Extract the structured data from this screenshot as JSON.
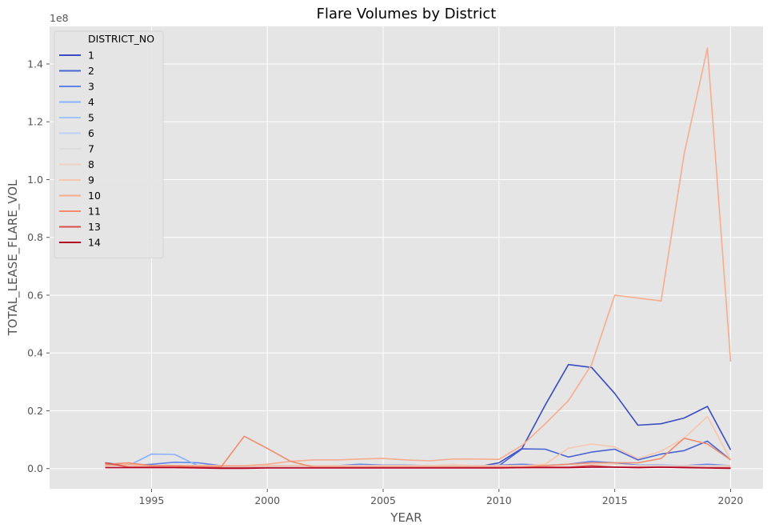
{
  "chart_data": {
    "type": "line",
    "title": "Flare Volumes by District",
    "xlabel": "YEAR",
    "ylabel": "TOTAL_LEASE_FLARE_VOL",
    "y_offset_text": "1e8",
    "xlim": [
      1990.6,
      2021.4
    ],
    "ylim": [
      -0.07,
      1.53
    ],
    "x_ticks": [
      1995,
      2000,
      2005,
      2010,
      2015,
      2020
    ],
    "y_ticks": [
      0.0,
      0.2,
      0.4,
      0.6,
      0.8,
      1.0,
      1.2,
      1.4
    ],
    "y_tick_labels": [
      "0.0",
      "0.2",
      "0.4",
      "0.6",
      "0.8",
      "1.0",
      "1.2",
      "1.4"
    ],
    "grid": true,
    "legend": {
      "title": "DISTRICT_NO",
      "placement": "upper-left"
    },
    "x": [
      1993,
      1994,
      1995,
      1996,
      1997,
      1998,
      1999,
      2000,
      2001,
      2002,
      2003,
      2004,
      2005,
      2006,
      2007,
      2008,
      2009,
      2010,
      2011,
      2012,
      2013,
      2014,
      2015,
      2016,
      2017,
      2018,
      2019,
      2020
    ],
    "series": [
      {
        "name": "1",
        "color": "#3b4cc0",
        "values": [
          0.02,
          0.01,
          0.01,
          0.01,
          0.01,
          0.005,
          0.005,
          0.005,
          0.005,
          0.005,
          0.005,
          0.005,
          0.005,
          0.005,
          0.005,
          0.005,
          0.005,
          0.02,
          0.07,
          0.22,
          0.36,
          0.35,
          0.26,
          0.15,
          0.155,
          0.175,
          0.215,
          0.065
        ]
      },
      {
        "name": "2",
        "color": "#4a63d3",
        "values": [
          0.01,
          0.01,
          0.01,
          0.01,
          0.01,
          0.005,
          0.005,
          0.005,
          0.005,
          0.005,
          0.005,
          0.005,
          0.005,
          0.005,
          0.005,
          0.005,
          0.005,
          0.01,
          0.068,
          0.067,
          0.04,
          0.057,
          0.067,
          0.03,
          0.05,
          0.062,
          0.095,
          0.03
        ]
      },
      {
        "name": "3",
        "color": "#6282ea",
        "values": [
          0.015,
          0.01,
          0.015,
          0.022,
          0.02,
          0.01,
          0.005,
          0.01,
          0.01,
          0.01,
          0.01,
          0.015,
          0.012,
          0.012,
          0.01,
          0.01,
          0.01,
          0.012,
          0.015,
          0.012,
          0.015,
          0.025,
          0.02,
          0.012,
          0.012,
          0.01,
          0.015,
          0.01
        ]
      },
      {
        "name": "4",
        "color": "#8db0fe",
        "values": [
          0.01,
          0.01,
          0.05,
          0.049,
          0.01,
          0.005,
          0.005,
          0.005,
          0.005,
          0.005,
          0.005,
          0.005,
          0.005,
          0.005,
          0.005,
          0.005,
          0.005,
          0.005,
          0.005,
          0.005,
          0.005,
          0.005,
          0.005,
          0.005,
          0.005,
          0.005,
          0.005,
          0.005
        ]
      },
      {
        "name": "5",
        "color": "#a3c2fe",
        "values": [
          0.005,
          0.005,
          0.005,
          0.005,
          0.005,
          0.005,
          0.005,
          0.005,
          0.005,
          0.005,
          0.005,
          0.005,
          0.005,
          0.005,
          0.005,
          0.005,
          0.005,
          0.005,
          0.005,
          0.005,
          0.005,
          0.005,
          0.005,
          0.005,
          0.005,
          0.005,
          0.005,
          0.005
        ]
      },
      {
        "name": "6",
        "color": "#bcd2f7",
        "values": [
          0.005,
          0.005,
          0.005,
          0.005,
          0.005,
          0.005,
          0.005,
          0.005,
          0.005,
          0.005,
          0.005,
          0.005,
          0.005,
          0.005,
          0.005,
          0.005,
          0.005,
          0.005,
          0.005,
          0.005,
          0.005,
          0.005,
          0.005,
          0.005,
          0.005,
          0.005,
          0.005,
          0.005
        ]
      },
      {
        "name": "7",
        "color": "#dddcdc",
        "values": [
          0.005,
          0.005,
          0.005,
          0.005,
          0.005,
          0.005,
          0.005,
          0.005,
          0.005,
          0.005,
          0.005,
          0.005,
          0.005,
          0.005,
          0.005,
          0.005,
          0.005,
          0.005,
          0.005,
          0.005,
          0.005,
          0.005,
          0.005,
          0.005,
          0.005,
          0.005,
          0.005,
          0.005
        ]
      },
      {
        "name": "8",
        "color": "#ecd3c5",
        "values": [
          0.01,
          0.01,
          0.01,
          0.01,
          0.01,
          0.01,
          0.01,
          0.01,
          0.01,
          0.01,
          0.01,
          0.01,
          0.01,
          0.01,
          0.01,
          0.015,
          0.01,
          0.01,
          0.01,
          0.012,
          0.015,
          0.015,
          0.015,
          0.01,
          0.01,
          0.01,
          0.01,
          0.01
        ]
      },
      {
        "name": "9",
        "color": "#f7c6ad",
        "values": [
          0.01,
          0.01,
          0.01,
          0.01,
          0.01,
          0.01,
          0.01,
          0.01,
          0.01,
          0.01,
          0.01,
          0.01,
          0.01,
          0.01,
          0.01,
          0.01,
          0.01,
          0.01,
          0.01,
          0.015,
          0.07,
          0.085,
          0.075,
          0.035,
          0.06,
          0.105,
          0.18,
          0.03
        ]
      },
      {
        "name": "10",
        "color": "#f7ac8e",
        "values": [
          0.01,
          0.015,
          0.01,
          0.01,
          0.01,
          0.01,
          0.01,
          0.015,
          0.025,
          0.03,
          0.03,
          0.033,
          0.035,
          0.03,
          0.027,
          0.033,
          0.033,
          0.032,
          0.08,
          0.155,
          0.235,
          0.36,
          0.6,
          0.59,
          0.58,
          1.09,
          1.455,
          0.37
        ]
      },
      {
        "name": "11",
        "color": "#f08c6e",
        "values": [
          0.015,
          0.02,
          0.01,
          0.01,
          0.005,
          0.005,
          0.112,
          0.07,
          0.025,
          0.005,
          0.005,
          0.005,
          0.005,
          0.005,
          0.005,
          0.005,
          0.005,
          0.005,
          0.005,
          0.01,
          0.015,
          0.02,
          0.02,
          0.02,
          0.035,
          0.105,
          0.085,
          0.03
        ]
      },
      {
        "name": "13",
        "color": "#d8504a",
        "values": [
          0.02,
          0.005,
          0.005,
          0.005,
          0.005,
          0.003,
          0.003,
          0.003,
          0.003,
          0.003,
          0.003,
          0.003,
          0.003,
          0.003,
          0.003,
          0.003,
          0.003,
          0.003,
          0.003,
          0.005,
          0.005,
          0.01,
          0.005,
          0.005,
          0.005,
          0.005,
          0.003,
          0.003
        ]
      },
      {
        "name": "14",
        "color": "#b40426",
        "values": [
          0.003,
          0.003,
          0.003,
          0.003,
          0.002,
          0.001,
          0.001,
          0.002,
          0.002,
          0.002,
          0.002,
          0.002,
          0.002,
          0.002,
          0.002,
          0.002,
          0.002,
          0.002,
          0.003,
          0.003,
          0.003,
          0.005,
          0.005,
          0.003,
          0.005,
          0.003,
          0.002,
          0.001
        ]
      }
    ]
  }
}
